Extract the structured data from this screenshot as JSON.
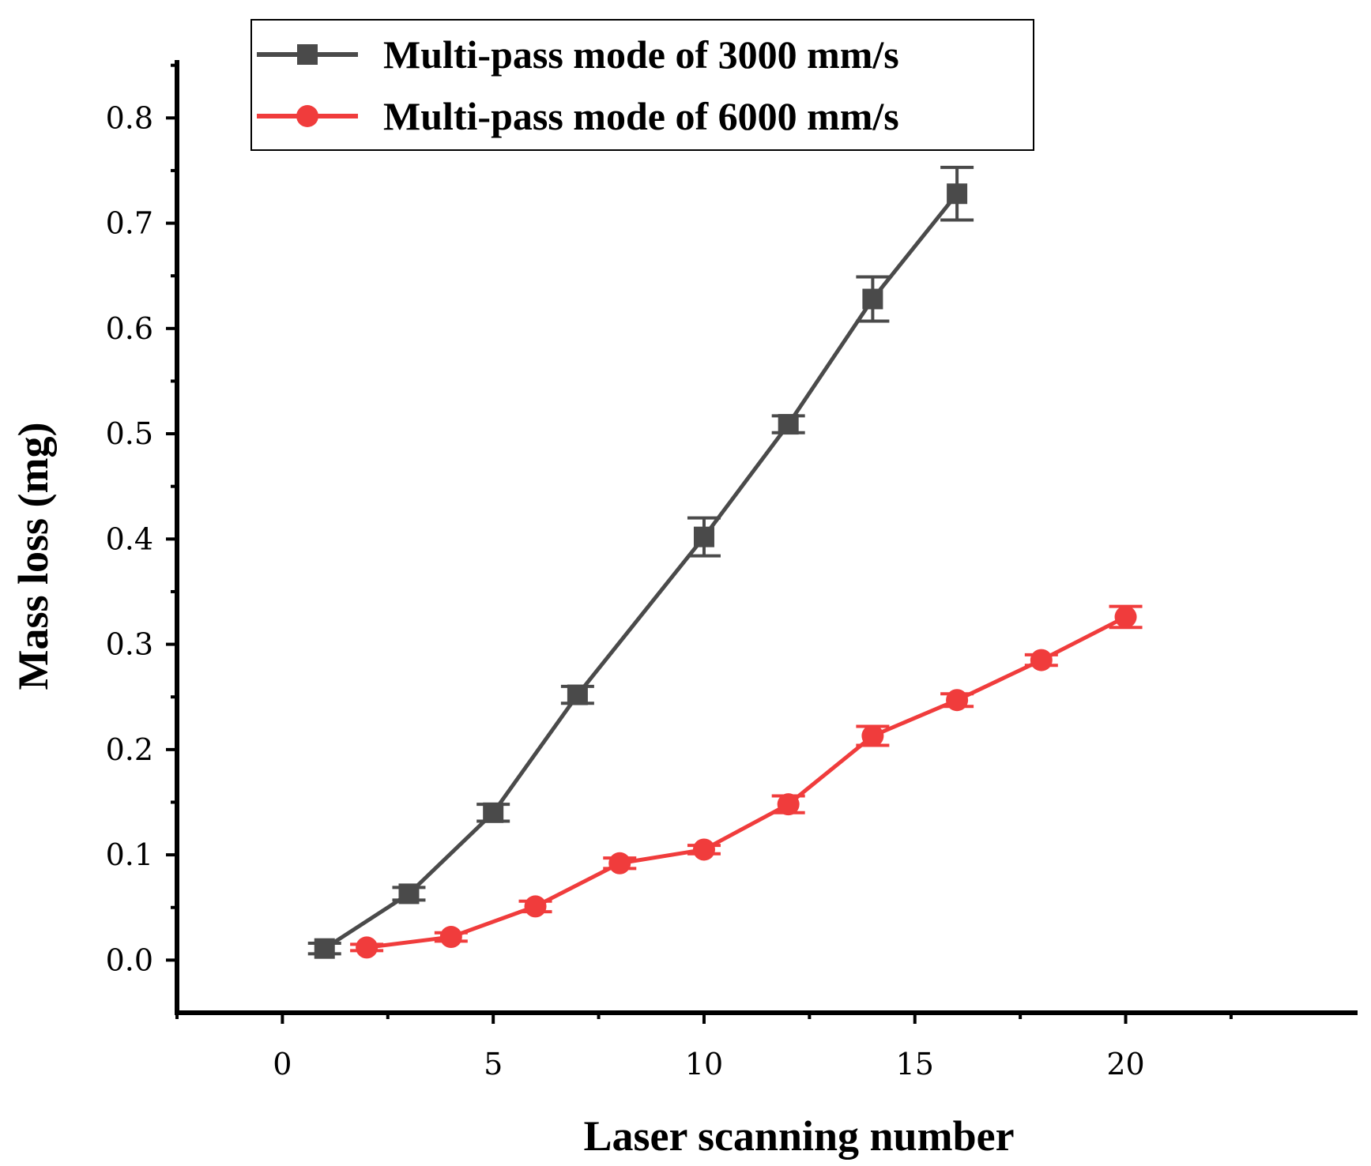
{
  "chart_data": {
    "type": "line",
    "title": "",
    "xlabel": "Laser scanning number",
    "ylabel": "Mass loss (mg)",
    "xlim": [
      -2.5,
      25.5
    ],
    "ylim": [
      -0.05,
      0.855
    ],
    "x_ticks": [
      0,
      5,
      10,
      15,
      20
    ],
    "x_tick_labels": [
      "0",
      "5",
      "10",
      "15",
      "20"
    ],
    "y_ticks": [
      0.0,
      0.1,
      0.2,
      0.3,
      0.4,
      0.5,
      0.6,
      0.7,
      0.8
    ],
    "y_tick_labels": [
      "0.0",
      "0.1",
      "0.2",
      "0.3",
      "0.4",
      "0.5",
      "0.6",
      "0.7",
      "0.8"
    ],
    "grid": false,
    "legend_position": "top-left",
    "series": [
      {
        "name": "Multi-pass mode of 3000 mm/s",
        "color": "#4a4a4a",
        "marker": "square",
        "x": [
          1,
          3,
          5,
          7,
          10,
          12,
          14,
          16
        ],
        "values": [
          0.011,
          0.063,
          0.14,
          0.252,
          0.402,
          0.509,
          0.628,
          0.728
        ],
        "errors": [
          0.005,
          0.006,
          0.008,
          0.008,
          0.018,
          0.008,
          0.021,
          0.025
        ]
      },
      {
        "name": "Multi-pass mode of 6000 mm/s",
        "color": "#f03c3c",
        "marker": "circle",
        "x": [
          2,
          4,
          6,
          8,
          10,
          12,
          14,
          16,
          18,
          20
        ],
        "values": [
          0.012,
          0.022,
          0.051,
          0.092,
          0.105,
          0.148,
          0.213,
          0.247,
          0.285,
          0.326
        ],
        "errors": [
          0.003,
          0.004,
          0.005,
          0.005,
          0.004,
          0.008,
          0.009,
          0.006,
          0.005,
          0.01
        ]
      }
    ]
  }
}
